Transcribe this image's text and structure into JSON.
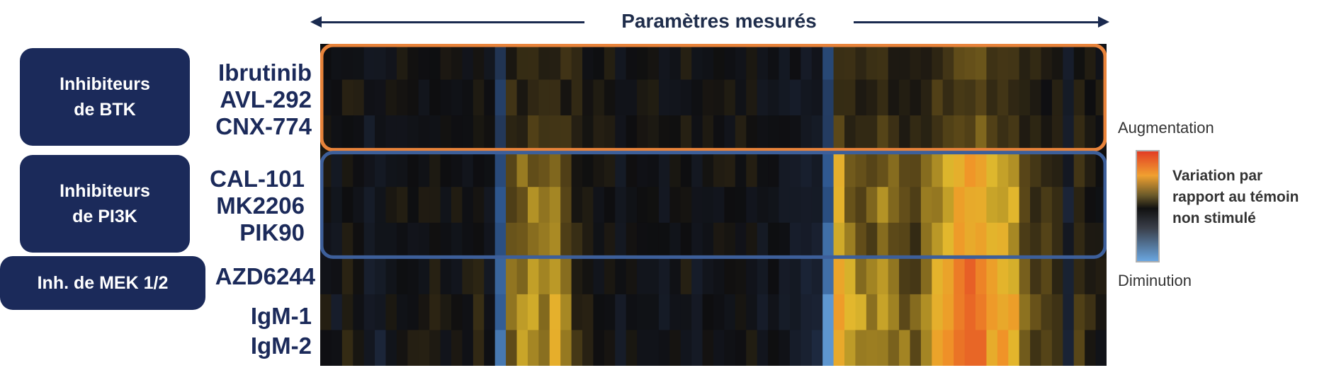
{
  "header": {
    "title": "Paramètres mesurés"
  },
  "groups": [
    {
      "label": "Inhibiteurs\nde BTK"
    },
    {
      "label": "Inhibiteurs\nde PI3K"
    },
    {
      "label": "Inh. de MEK 1/2"
    }
  ],
  "row_labels": [
    "Ibrutinib",
    "AVL-292",
    "CNX-774",
    "CAL-101",
    "MK2206",
    "PIK90",
    "AZD6244",
    "IgM-1",
    "IgM-2"
  ],
  "legend": {
    "top_label": "Augmentation",
    "bottom_label": "Diminution",
    "caption_lines": [
      "Variation par",
      "rapport au témoin",
      "non stimulé"
    ]
  },
  "colors": {
    "group_box": "#1b2a5a",
    "btk_outline": "#e8833a",
    "pi3k_outline": "#3d5f9a",
    "increase": "#e23d24",
    "decrease": "#6aa6e0"
  },
  "chart_data": {
    "type": "heatmap",
    "rows": [
      "Ibrutinib",
      "AVL-292",
      "CNX-774",
      "CAL-101",
      "MK2206",
      "PIK90",
      "AZD6244",
      "IgM-1",
      "IgM-2"
    ],
    "n_columns": 72,
    "scale": "relative change vs. unstimulated control (-1 = decrease, +1 = increase)",
    "profile": [
      0,
      -0.1,
      0.1,
      0,
      -0.2,
      -0.2,
      0,
      0,
      0,
      0,
      0.1,
      0,
      0,
      0,
      0.1,
      -0.1,
      -0.7,
      0.35,
      0.45,
      0.5,
      0.45,
      0.55,
      0.35,
      0.15,
      0.1,
      0,
      0,
      -0.1,
      0,
      0,
      0,
      -0.1,
      0,
      0,
      -0.1,
      0,
      0,
      0,
      0,
      0,
      -0.1,
      0,
      -0.1,
      -0.15,
      -0.2,
      -0.25,
      -0.85,
      0.7,
      0.5,
      0.45,
      0.4,
      0.5,
      0.4,
      0.35,
      0.3,
      0.45,
      0.65,
      0.7,
      0.9,
      0.95,
      0.8,
      0.7,
      0.7,
      0.65,
      0.35,
      0.25,
      0.25,
      0.15,
      -0.25,
      0.2,
      0.1,
      0
    ],
    "row_scale": [
      0.3,
      0.3,
      0.35,
      0.75,
      0.75,
      0.75,
      0.9,
      1.0,
      1.0
    ],
    "row_groups": [
      {
        "name": "Inhibiteurs de BTK",
        "rows": [
          0,
          2
        ]
      },
      {
        "name": "Inhibiteurs de PI3K",
        "rows": [
          3,
          5
        ]
      },
      {
        "name": "Inh. de MEK 1/2",
        "rows": [
          6,
          6
        ]
      }
    ]
  }
}
